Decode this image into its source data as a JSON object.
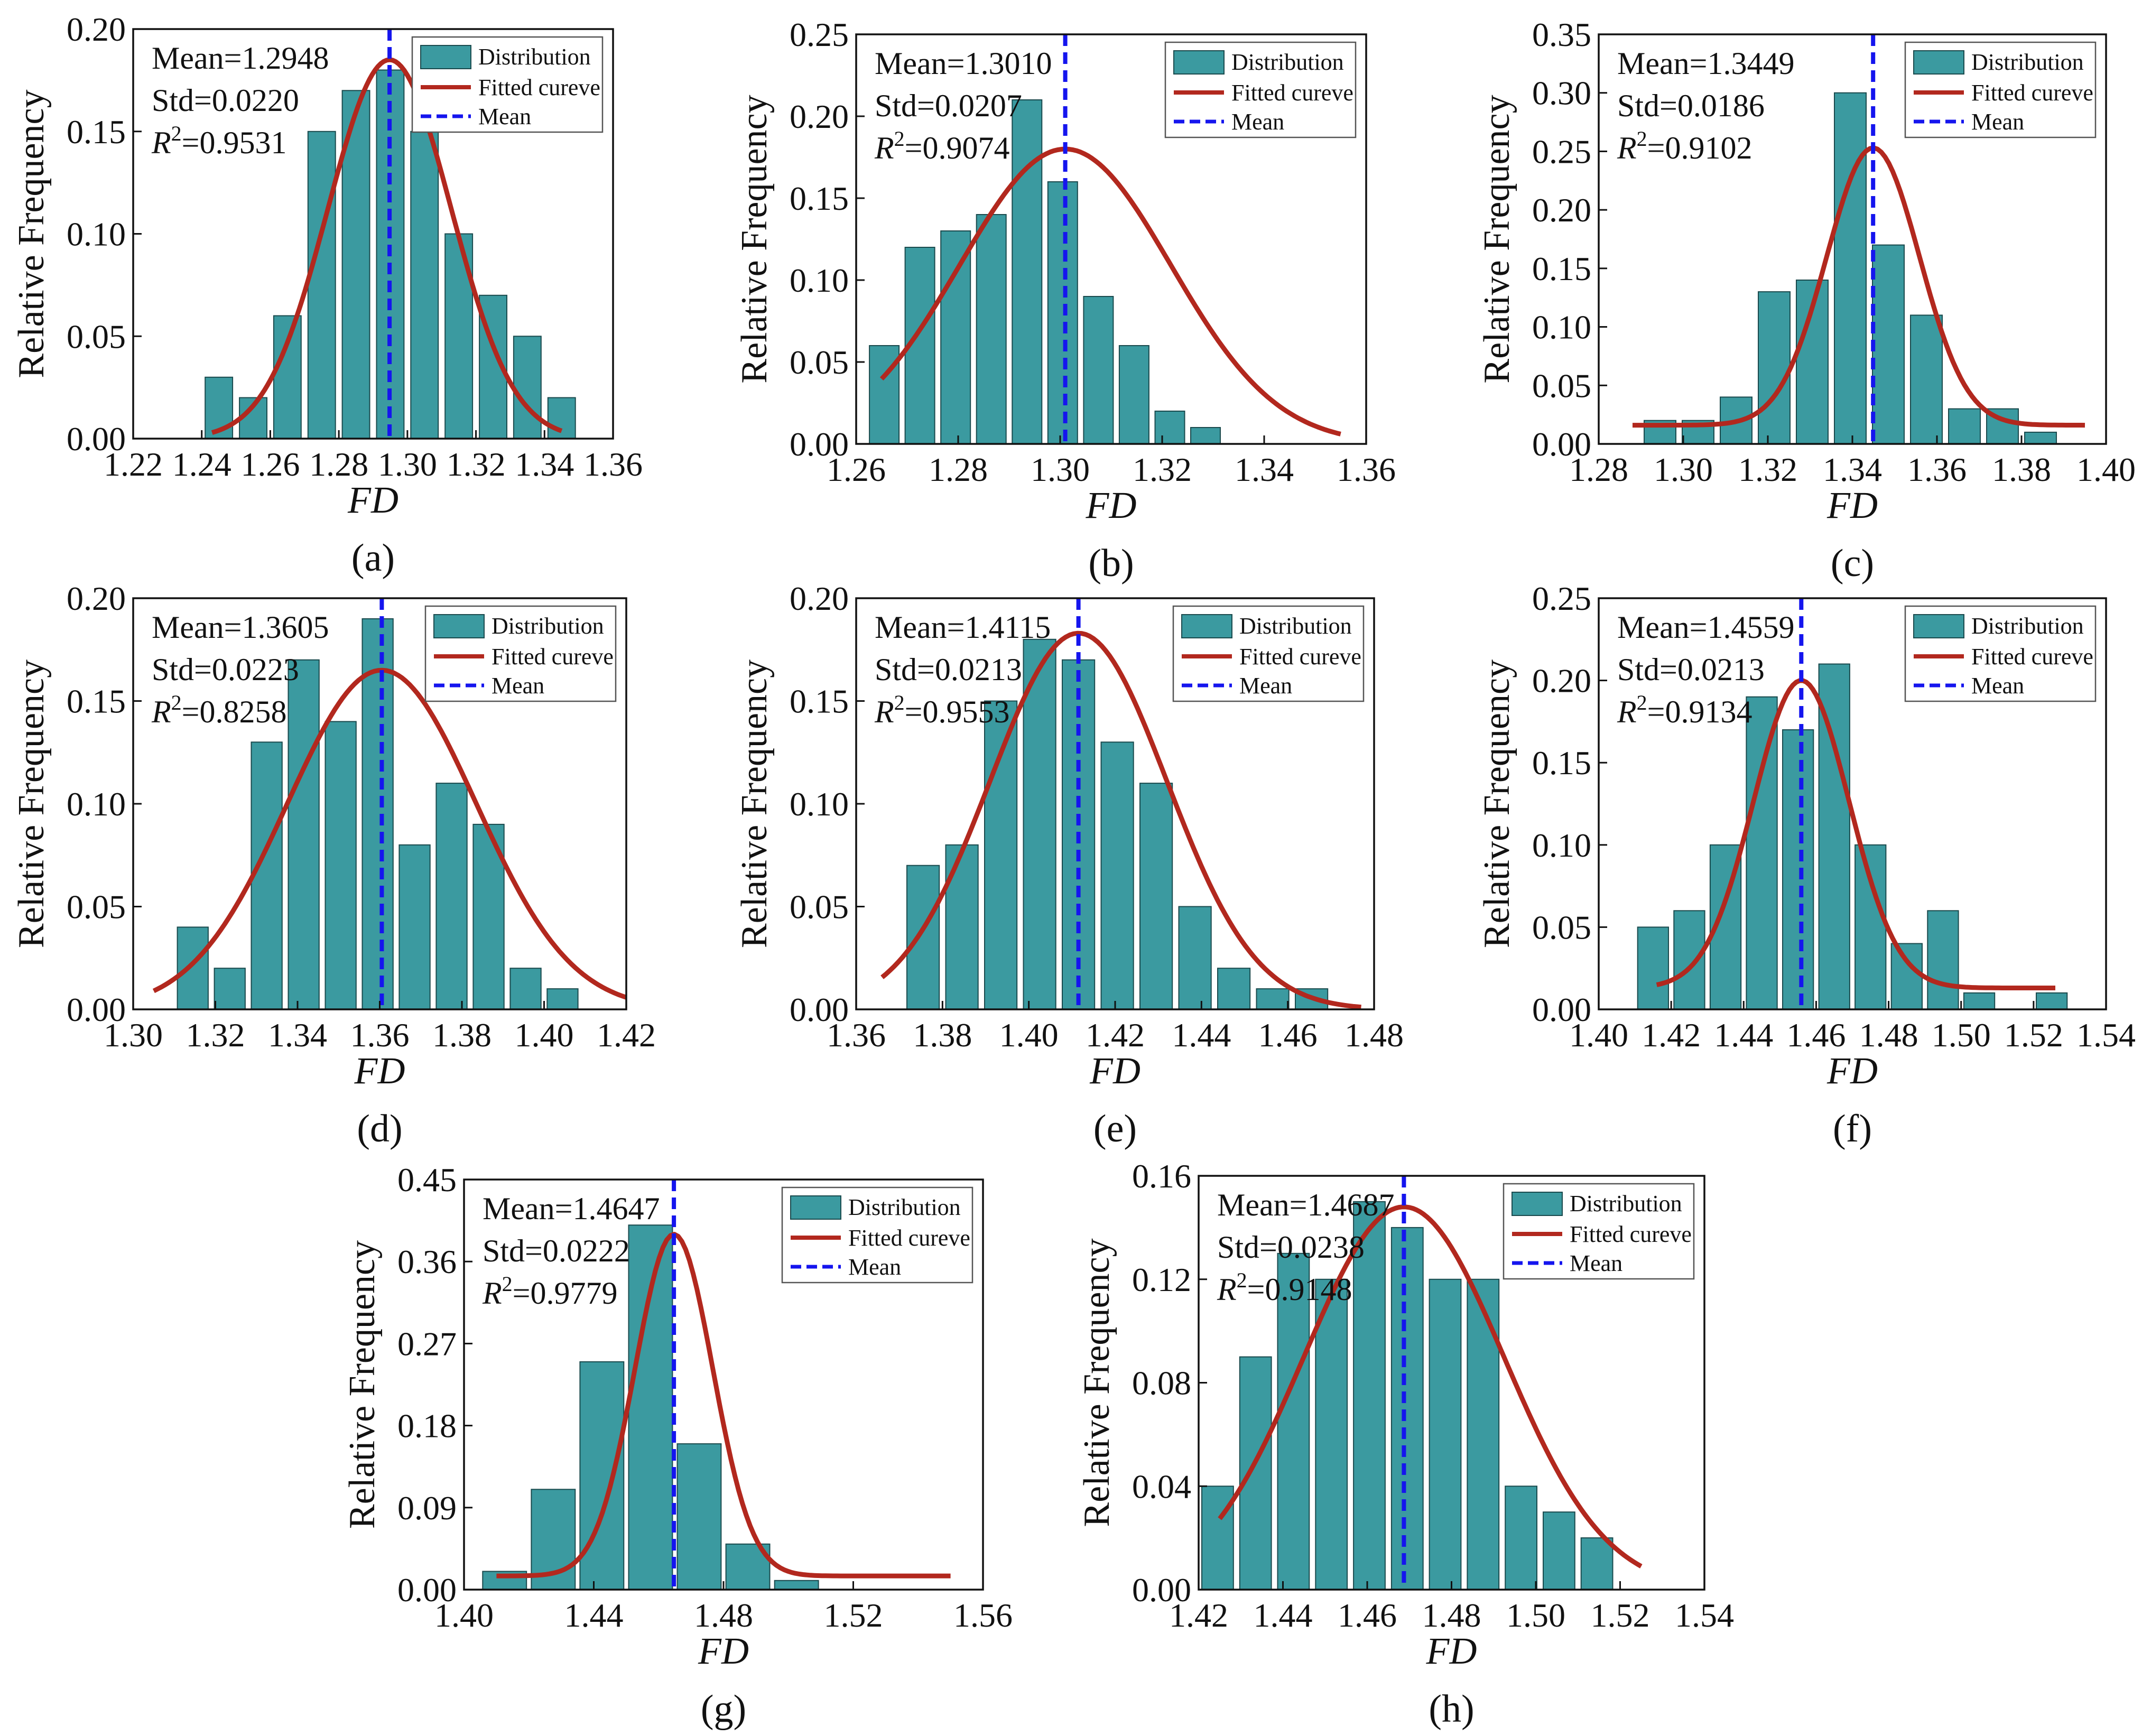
{
  "figure": {
    "colors": {
      "bar": "#3b9aa0",
      "bar_edge": "#1a4a4d",
      "fit": "#b2281e",
      "mean": "#1515ee"
    },
    "legend": {
      "distribution": "Distribution",
      "fitted": "Fitted cureve",
      "mean": "Mean"
    },
    "ylabel": "Relative Frequency",
    "xlabel": "FD"
  },
  "chart_data": [
    {
      "type": "bar",
      "panel": "(a)",
      "title": "",
      "xlabel": "FD",
      "ylabel": "Relative Frequency",
      "mean_text": "Mean=1.2948",
      "std_text": "Std=0.0220",
      "r2_value": "=0.9531",
      "mean": 1.2948,
      "std": 0.022,
      "xlim": [
        1.22,
        1.36
      ],
      "ylim": [
        0,
        0.2
      ],
      "xstep": 0.02,
      "ystep": 0.05,
      "xticks": [
        "1.22",
        "1.24",
        "1.26",
        "1.28",
        "1.30",
        "1.32",
        "1.34",
        "1.36"
      ],
      "yticks": [
        "0.00",
        "0.05",
        "0.10",
        "0.15",
        "0.20"
      ],
      "x": [
        1.245,
        1.255,
        1.265,
        1.275,
        1.285,
        1.295,
        1.305,
        1.315,
        1.325,
        1.335,
        1.345
      ],
      "values": [
        0.03,
        0.02,
        0.06,
        0.15,
        0.17,
        0.18,
        0.15,
        0.1,
        0.07,
        0.05,
        0.02
      ],
      "bar_width": 0.008,
      "fit": {
        "x_range": [
          1.243,
          1.345
        ],
        "peak": 0.185,
        "sigma": 0.018,
        "base": 0.0
      }
    },
    {
      "type": "bar",
      "panel": "(b)",
      "title": "",
      "xlabel": "FD",
      "ylabel": "Relative Frequency",
      "mean_text": "Mean=1.3010",
      "std_text": "Std=0.0207",
      "r2_value": "=0.9074",
      "mean": 1.301,
      "std": 0.0207,
      "xlim": [
        1.26,
        1.36
      ],
      "ylim": [
        0,
        0.25
      ],
      "xstep": 0.02,
      "ystep": 0.05,
      "xticks": [
        "1.26",
        "1.28",
        "1.30",
        "1.32",
        "1.34",
        "1.36"
      ],
      "yticks": [
        "0.00",
        "0.05",
        "0.10",
        "0.15",
        "0.20",
        "0.25"
      ],
      "x": [
        1.2655,
        1.2725,
        1.2795,
        1.2865,
        1.2935,
        1.3005,
        1.3075,
        1.3145,
        1.3215,
        1.3285,
        1.3355
      ],
      "values": [
        0.06,
        0.12,
        0.13,
        0.14,
        0.21,
        0.16,
        0.09,
        0.06,
        0.02,
        0.01,
        0.0
      ],
      "bar_width": 0.0058,
      "fit": {
        "x_range": [
          1.265,
          1.355
        ],
        "peak": 0.18,
        "sigma": 0.0207,
        "base": 0.0
      }
    },
    {
      "type": "bar",
      "panel": "(c)",
      "title": "",
      "xlabel": "FD",
      "ylabel": "Relative Frequency",
      "mean_text": "Mean=1.3449",
      "std_text": "Std=0.0186",
      "r2_value": "=0.9102",
      "mean": 1.3449,
      "std": 0.0186,
      "xlim": [
        1.28,
        1.4
      ],
      "ylim": [
        0,
        0.35
      ],
      "xstep": 0.02,
      "ystep": 0.05,
      "xticks": [
        "1.28",
        "1.30",
        "1.32",
        "1.34",
        "1.36",
        "1.38",
        "1.40"
      ],
      "yticks": [
        "0.00",
        "0.05",
        "0.10",
        "0.15",
        "0.20",
        "0.25",
        "0.30",
        "0.35"
      ],
      "x": [
        1.2945,
        1.3035,
        1.3125,
        1.3215,
        1.3305,
        1.3395,
        1.3485,
        1.3575,
        1.3665,
        1.3755,
        1.3845,
        1.3935
      ],
      "values": [
        0.02,
        0.02,
        0.04,
        0.13,
        0.14,
        0.3,
        0.17,
        0.11,
        0.03,
        0.03,
        0.01,
        0.0
      ],
      "bar_width": 0.0075,
      "fit": {
        "x_range": [
          1.288,
          1.395
        ],
        "peak": 0.253,
        "sigma": 0.011,
        "base": 0.016
      }
    },
    {
      "type": "bar",
      "panel": "(d)",
      "title": "",
      "xlabel": "FD",
      "ylabel": "Relative Frequency",
      "mean_text": "Mean=1.3605",
      "std_text": "Std=0.0223",
      "r2_value": "=0.8258",
      "mean": 1.3605,
      "std": 0.0223,
      "xlim": [
        1.3,
        1.42
      ],
      "ylim": [
        0,
        0.2
      ],
      "xstep": 0.02,
      "ystep": 0.05,
      "xticks": [
        "1.30",
        "1.32",
        "1.34",
        "1.36",
        "1.38",
        "1.40",
        "1.42"
      ],
      "yticks": [
        "0.00",
        "0.05",
        "0.10",
        "0.15",
        "0.20"
      ],
      "x": [
        1.3145,
        1.3235,
        1.3325,
        1.3415,
        1.3505,
        1.3595,
        1.3685,
        1.3775,
        1.3865,
        1.3955,
        1.4045,
        1.4135
      ],
      "values": [
        0.04,
        0.02,
        0.13,
        0.17,
        0.14,
        0.19,
        0.08,
        0.11,
        0.09,
        0.02,
        0.01,
        0.0
      ],
      "bar_width": 0.0075,
      "fit": {
        "x_range": [
          1.305,
          1.42
        ],
        "peak": 0.165,
        "sigma": 0.023,
        "base": 0.0
      }
    },
    {
      "type": "bar",
      "panel": "(e)",
      "title": "",
      "xlabel": "FD",
      "ylabel": "Relative Frequency",
      "mean_text": "Mean=1.4115",
      "std_text": "Std=0.0213",
      "r2_value": "=0.9553",
      "mean": 1.4115,
      "std": 0.0213,
      "xlim": [
        1.36,
        1.48
      ],
      "ylim": [
        0,
        0.2
      ],
      "xstep": 0.02,
      "ystep": 0.05,
      "xticks": [
        "1.36",
        "1.38",
        "1.40",
        "1.42",
        "1.44",
        "1.46",
        "1.48"
      ],
      "yticks": [
        "0.00",
        "0.05",
        "0.10",
        "0.15",
        "0.20"
      ],
      "x": [
        1.3755,
        1.3845,
        1.3935,
        1.4025,
        1.4115,
        1.4205,
        1.4295,
        1.4385,
        1.4475,
        1.4565,
        1.4655,
        1.4745
      ],
      "values": [
        0.07,
        0.08,
        0.15,
        0.18,
        0.17,
        0.13,
        0.11,
        0.05,
        0.02,
        0.01,
        0.01,
        0.0
      ],
      "bar_width": 0.0075,
      "fit": {
        "x_range": [
          1.366,
          1.477
        ],
        "peak": 0.183,
        "sigma": 0.0205,
        "base": 0.0
      }
    },
    {
      "type": "bar",
      "panel": "(f)",
      "title": "",
      "xlabel": "FD",
      "ylabel": "Relative Frequency",
      "mean_text": "Mean=1.4559",
      "std_text": "Std=0.0213",
      "r2_value": "=0.9134",
      "mean": 1.4559,
      "std": 0.0213,
      "xlim": [
        1.4,
        1.54
      ],
      "ylim": [
        0,
        0.25
      ],
      "xstep": 0.02,
      "ystep": 0.05,
      "xticks": [
        "1.40",
        "1.42",
        "1.44",
        "1.46",
        "1.48",
        "1.50",
        "1.52",
        "1.54"
      ],
      "yticks": [
        "0.00",
        "0.05",
        "0.10",
        "0.15",
        "0.20",
        "0.25"
      ],
      "x": [
        1.415,
        1.425,
        1.435,
        1.445,
        1.455,
        1.465,
        1.475,
        1.485,
        1.495,
        1.505,
        1.515,
        1.525
      ],
      "values": [
        0.05,
        0.06,
        0.1,
        0.19,
        0.17,
        0.21,
        0.1,
        0.04,
        0.06,
        0.01,
        0.0,
        0.01
      ],
      "bar_width": 0.0085,
      "fit": {
        "x_range": [
          1.416,
          1.526
        ],
        "peak": 0.2,
        "sigma": 0.0132,
        "base": 0.013
      }
    },
    {
      "type": "bar",
      "panel": "(g)",
      "title": "",
      "xlabel": "FD",
      "ylabel": "Relative Frequency",
      "mean_text": "Mean=1.4647",
      "std_text": "Std=0.0222",
      "r2_value": "=0.9779",
      "mean": 1.4647,
      "std": 0.0222,
      "xlim": [
        1.4,
        1.56
      ],
      "ylim": [
        0,
        0.45
      ],
      "xstep": 0.04,
      "ystep": 0.09,
      "xticks": [
        "1.40",
        "1.44",
        "1.48",
        "1.52",
        "1.56"
      ],
      "yticks": [
        "0.00",
        "0.09",
        "0.18",
        "0.27",
        "0.36",
        "0.45"
      ],
      "x": [
        1.4125,
        1.4275,
        1.4425,
        1.4575,
        1.4725,
        1.4875,
        1.5025,
        1.5175,
        1.5325
      ],
      "values": [
        0.02,
        0.11,
        0.25,
        0.4,
        0.16,
        0.05,
        0.01,
        0.0,
        0.0
      ],
      "bar_width": 0.0135,
      "fit": {
        "x_range": [
          1.41,
          1.55
        ],
        "peak": 0.39,
        "sigma": 0.012,
        "base": 0.015
      }
    },
    {
      "type": "bar",
      "panel": "(h)",
      "title": "",
      "xlabel": "FD",
      "ylabel": "Relative Frequency",
      "mean_text": "Mean=1.4687",
      "std_text": "Std=0.0238",
      "r2_value": "=0.9148",
      "mean": 1.4687,
      "std": 0.0238,
      "xlim": [
        1.42,
        1.54
      ],
      "ylim": [
        0,
        0.16
      ],
      "xstep": 0.02,
      "ystep": 0.04,
      "xticks": [
        "1.42",
        "1.44",
        "1.46",
        "1.48",
        "1.50",
        "1.52",
        "1.54"
      ],
      "yticks": [
        "0.00",
        "0.04",
        "0.08",
        "0.12",
        "0.16"
      ],
      "x": [
        1.4245,
        1.4335,
        1.4425,
        1.4515,
        1.4605,
        1.4695,
        1.4785,
        1.4875,
        1.4965,
        1.5055,
        1.5145,
        1.5235
      ],
      "values": [
        0.04,
        0.09,
        0.13,
        0.12,
        0.15,
        0.14,
        0.12,
        0.12,
        0.04,
        0.03,
        0.02,
        0.0
      ],
      "bar_width": 0.0075,
      "fit": {
        "x_range": [
          1.425,
          1.525
        ],
        "peak": 0.148,
        "sigma": 0.0238,
        "base": 0.0
      }
    }
  ]
}
